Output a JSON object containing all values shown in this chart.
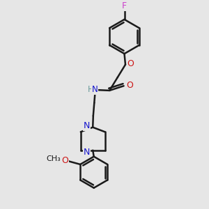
{
  "bg_color": "#e6e6e6",
  "bond_color": "#1a1a1a",
  "N_color": "#1414cc",
  "O_color": "#cc1414",
  "F_color": "#cc44cc",
  "H_color": "#6a9a9a",
  "line_width": 1.8,
  "figsize": [
    3.0,
    3.0
  ],
  "dpi": 100,
  "xlim": [
    0,
    1
  ],
  "ylim": [
    0,
    1
  ]
}
